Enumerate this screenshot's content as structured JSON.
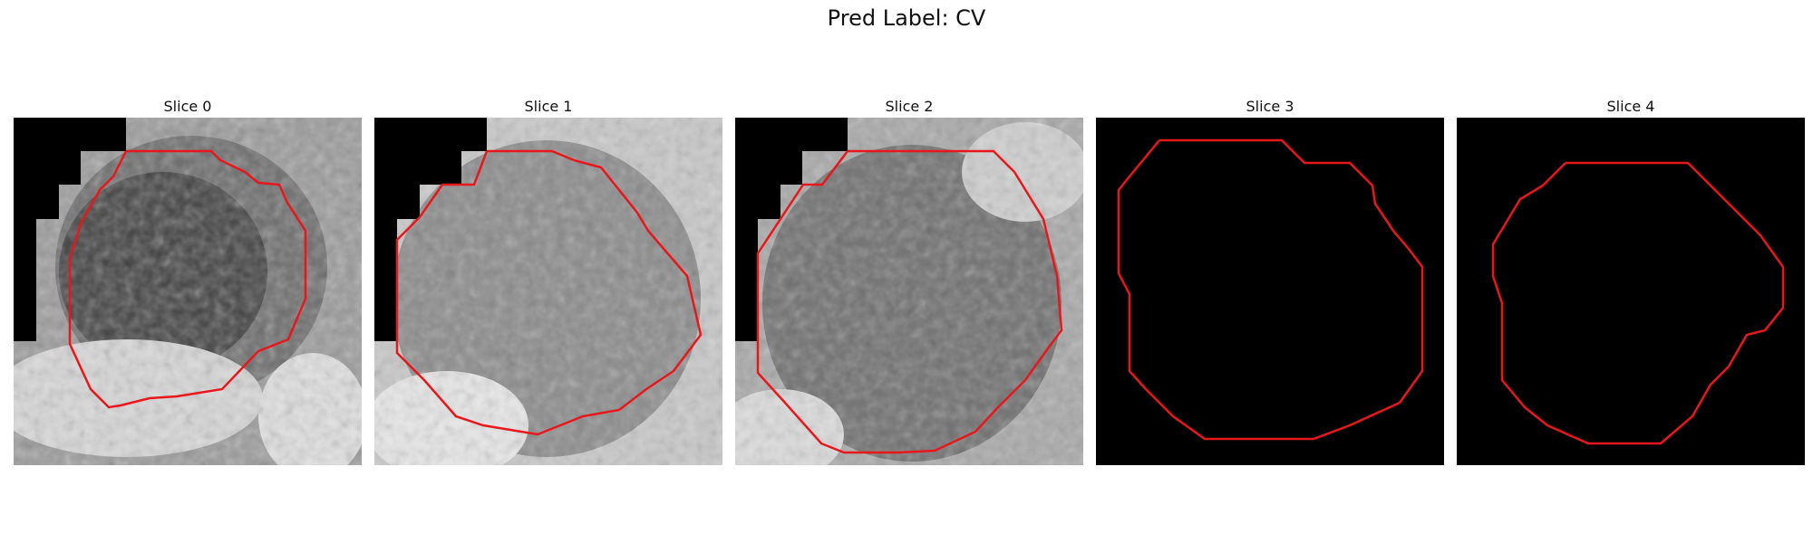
{
  "figure": {
    "title": "Pred Label: CV",
    "panels": [
      {
        "title": "Slice 0",
        "image": "grayscale-mri-slice-with-dark-corner",
        "contour_color": "#ff0000"
      },
      {
        "title": "Slice 1",
        "image": "grayscale-mri-slice-with-dark-corner",
        "contour_color": "#ff0000"
      },
      {
        "title": "Slice 2",
        "image": "grayscale-mri-slice-with-dark-corner",
        "contour_color": "#ff0000"
      },
      {
        "title": "Slice 3",
        "image": "black-empty-slice",
        "contour_color": "#ff0000"
      },
      {
        "title": "Slice 4",
        "image": "black-empty-slice",
        "contour_color": "#ff0000"
      }
    ]
  }
}
